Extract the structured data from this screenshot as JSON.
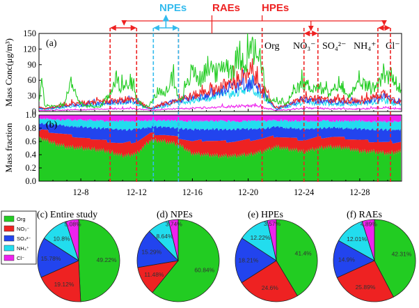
{
  "chart_data": [
    {
      "type": "line",
      "panel_label": "(a)",
      "ylabel": "Mass Conc(μg/m³)",
      "ylim": [
        0,
        150
      ],
      "yticks": [
        0,
        30,
        60,
        90,
        120,
        150
      ],
      "x_range_days": [
        5,
        31
      ],
      "x_ticks": [
        {
          "day": 8,
          "label": "12-8"
        },
        {
          "day": 12,
          "label": "12-12"
        },
        {
          "day": 16,
          "label": "12-16"
        },
        {
          "day": 20,
          "label": "12-20"
        },
        {
          "day": 24,
          "label": "12-24"
        },
        {
          "day": 28,
          "label": "12-28"
        }
      ],
      "series": [
        {
          "name": "Org",
          "color": "#22cc22",
          "values_approx": [
            [
              5.0,
              22
            ],
            [
              5.2,
              60
            ],
            [
              5.4,
              12
            ],
            [
              6.2,
              10
            ],
            [
              6.8,
              14
            ],
            [
              7.4,
              62
            ],
            [
              7.8,
              18
            ],
            [
              8.4,
              10
            ],
            [
              9.3,
              8
            ],
            [
              10.0,
              30
            ],
            [
              10.4,
              62
            ],
            [
              11.0,
              45
            ],
            [
              11.6,
              58
            ],
            [
              12.0,
              25
            ],
            [
              12.5,
              8
            ],
            [
              13.0,
              15
            ],
            [
              13.5,
              40
            ],
            [
              14.0,
              30
            ],
            [
              14.6,
              70
            ],
            [
              15.0,
              20
            ],
            [
              15.5,
              40
            ],
            [
              16.0,
              80
            ],
            [
              16.6,
              60
            ],
            [
              17.2,
              90
            ],
            [
              17.8,
              70
            ],
            [
              18.3,
              95
            ],
            [
              18.8,
              80
            ],
            [
              19.4,
              110
            ],
            [
              19.9,
              95
            ],
            [
              20.3,
              120
            ],
            [
              20.7,
              105
            ],
            [
              21.0,
              88
            ],
            [
              21.3,
              22
            ],
            [
              22.0,
              18
            ],
            [
              22.8,
              15
            ],
            [
              23.4,
              40
            ],
            [
              24.0,
              55
            ],
            [
              24.4,
              48
            ],
            [
              24.8,
              45
            ],
            [
              25.3,
              40
            ],
            [
              26.0,
              35
            ],
            [
              26.5,
              55
            ],
            [
              27.0,
              32
            ],
            [
              27.6,
              40
            ],
            [
              28.2,
              55
            ],
            [
              28.8,
              42
            ],
            [
              29.3,
              55
            ],
            [
              29.7,
              75
            ],
            [
              30.2,
              70
            ],
            [
              30.6,
              45
            ]
          ]
        },
        {
          "name": "NO₃⁻",
          "color": "#ee2222",
          "values_approx": [
            [
              5.0,
              8
            ],
            [
              5.4,
              5
            ],
            [
              7.4,
              15
            ],
            [
              10.4,
              20
            ],
            [
              11.6,
              25
            ],
            [
              13.0,
              6
            ],
            [
              14.6,
              20
            ],
            [
              16.0,
              30
            ],
            [
              17.2,
              40
            ],
            [
              18.3,
              50
            ],
            [
              19.4,
              60
            ],
            [
              20.3,
              70
            ],
            [
              21.0,
              45
            ],
            [
              22.0,
              6
            ],
            [
              24.0,
              25
            ],
            [
              26.5,
              22
            ],
            [
              28.2,
              20
            ],
            [
              29.7,
              35
            ],
            [
              30.6,
              20
            ]
          ]
        },
        {
          "name": "SO₄²⁻",
          "color": "#2244ee",
          "values_approx": [
            [
              5.0,
              7
            ],
            [
              5.4,
              5
            ],
            [
              7.4,
              12
            ],
            [
              10.4,
              18
            ],
            [
              11.6,
              22
            ],
            [
              13.0,
              5
            ],
            [
              14.6,
              18
            ],
            [
              16.0,
              25
            ],
            [
              17.2,
              32
            ],
            [
              18.3,
              40
            ],
            [
              19.4,
              48
            ],
            [
              20.3,
              55
            ],
            [
              21.0,
              40
            ],
            [
              22.0,
              5
            ],
            [
              24.0,
              22
            ],
            [
              26.5,
              18
            ],
            [
              28.2,
              18
            ],
            [
              29.7,
              30
            ],
            [
              30.6,
              18
            ]
          ]
        },
        {
          "name": "NH₄⁺",
          "color": "#22ddee",
          "values_approx": [
            [
              5.0,
              6
            ],
            [
              5.4,
              4
            ],
            [
              7.4,
              9
            ],
            [
              10.4,
              14
            ],
            [
              11.6,
              17
            ],
            [
              13.0,
              4
            ],
            [
              14.6,
              14
            ],
            [
              16.0,
              20
            ],
            [
              17.2,
              26
            ],
            [
              18.3,
              32
            ],
            [
              19.4,
              38
            ],
            [
              20.3,
              44
            ],
            [
              21.0,
              30
            ],
            [
              22.0,
              4
            ],
            [
              24.0,
              17
            ],
            [
              26.5,
              14
            ],
            [
              28.2,
              14
            ],
            [
              29.7,
              22
            ],
            [
              30.6,
              14
            ]
          ]
        },
        {
          "name": "Cl⁻",
          "color": "#ee22ee",
          "values_approx": [
            [
              5.0,
              2
            ],
            [
              5.4,
              2
            ],
            [
              7.4,
              3
            ],
            [
              10.4,
              5
            ],
            [
              11.6,
              6
            ],
            [
              13.0,
              2
            ],
            [
              14.6,
              5
            ],
            [
              16.0,
              6
            ],
            [
              17.2,
              8
            ],
            [
              18.3,
              9
            ],
            [
              19.4,
              10
            ],
            [
              20.3,
              12
            ],
            [
              21.0,
              8
            ],
            [
              22.0,
              2
            ],
            [
              24.0,
              6
            ],
            [
              26.5,
              5
            ],
            [
              28.2,
              5
            ],
            [
              29.7,
              8
            ],
            [
              30.6,
              5
            ]
          ]
        }
      ]
    },
    {
      "type": "area",
      "panel_label": "(b)",
      "ylabel": "Mass fraction",
      "ylim": [
        0,
        1.0
      ],
      "yticks": [
        0.0,
        0.2,
        0.4,
        0.6,
        0.8,
        1.0
      ],
      "stack_order": [
        "Org",
        "NO₃⁻",
        "SO₄²⁻",
        "NH₄⁺",
        "Cl⁻"
      ],
      "cumulative_boundaries_approx": [
        {
          "day": 5.0,
          "org": 0.65,
          "no3": 0.78,
          "so4": 0.88,
          "nh4": 0.95
        },
        {
          "day": 6.0,
          "org": 0.58,
          "no3": 0.74,
          "so4": 0.85,
          "nh4": 0.93
        },
        {
          "day": 7.0,
          "org": 0.52,
          "no3": 0.7,
          "so4": 0.84,
          "nh4": 0.93
        },
        {
          "day": 8.0,
          "org": 0.5,
          "no3": 0.66,
          "so4": 0.82,
          "nh4": 0.92
        },
        {
          "day": 9.0,
          "org": 0.48,
          "no3": 0.63,
          "so4": 0.8,
          "nh4": 0.92
        },
        {
          "day": 10.0,
          "org": 0.45,
          "no3": 0.6,
          "so4": 0.8,
          "nh4": 0.91
        },
        {
          "day": 11.0,
          "org": 0.38,
          "no3": 0.57,
          "so4": 0.78,
          "nh4": 0.91
        },
        {
          "day": 12.0,
          "org": 0.42,
          "no3": 0.6,
          "so4": 0.78,
          "nh4": 0.91
        },
        {
          "day": 13.0,
          "org": 0.62,
          "no3": 0.72,
          "so4": 0.82,
          "nh4": 0.92
        },
        {
          "day": 14.0,
          "org": 0.6,
          "no3": 0.7,
          "so4": 0.82,
          "nh4": 0.92
        },
        {
          "day": 15.0,
          "org": 0.55,
          "no3": 0.66,
          "so4": 0.8,
          "nh4": 0.91
        },
        {
          "day": 16.0,
          "org": 0.42,
          "no3": 0.6,
          "so4": 0.78,
          "nh4": 0.91
        },
        {
          "day": 17.0,
          "org": 0.4,
          "no3": 0.62,
          "so4": 0.79,
          "nh4": 0.91
        },
        {
          "day": 18.0,
          "org": 0.38,
          "no3": 0.6,
          "so4": 0.78,
          "nh4": 0.91
        },
        {
          "day": 19.0,
          "org": 0.38,
          "no3": 0.6,
          "so4": 0.78,
          "nh4": 0.9
        },
        {
          "day": 20.0,
          "org": 0.4,
          "no3": 0.62,
          "so4": 0.79,
          "nh4": 0.91
        },
        {
          "day": 21.0,
          "org": 0.45,
          "no3": 0.64,
          "so4": 0.8,
          "nh4": 0.91
        },
        {
          "day": 22.0,
          "org": 0.52,
          "no3": 0.68,
          "so4": 0.82,
          "nh4": 0.92
        },
        {
          "day": 23.0,
          "org": 0.48,
          "no3": 0.65,
          "so4": 0.8,
          "nh4": 0.91
        },
        {
          "day": 24.0,
          "org": 0.45,
          "no3": 0.62,
          "so4": 0.79,
          "nh4": 0.91
        },
        {
          "day": 25.0,
          "org": 0.5,
          "no3": 0.66,
          "so4": 0.8,
          "nh4": 0.91
        },
        {
          "day": 26.0,
          "org": 0.52,
          "no3": 0.67,
          "so4": 0.81,
          "nh4": 0.91
        },
        {
          "day": 27.0,
          "org": 0.5,
          "no3": 0.65,
          "so4": 0.8,
          "nh4": 0.91
        },
        {
          "day": 28.0,
          "org": 0.45,
          "no3": 0.62,
          "so4": 0.79,
          "nh4": 0.91
        },
        {
          "day": 29.0,
          "org": 0.45,
          "no3": 0.6,
          "so4": 0.78,
          "nh4": 0.9
        },
        {
          "day": 30.0,
          "org": 0.42,
          "no3": 0.58,
          "so4": 0.78,
          "nh4": 0.9
        },
        {
          "day": 31.0,
          "org": 0.45,
          "no3": 0.6,
          "so4": 0.78,
          "nh4": 0.9
        }
      ]
    },
    {
      "type": "pie",
      "title": "(c) Entire study",
      "slices": [
        {
          "name": "Org",
          "value": 49.22,
          "label": "49.22%"
        },
        {
          "name": "NO₃⁻",
          "value": 19.12,
          "label": "19.12%"
        },
        {
          "name": "SO₄²⁻",
          "value": 15.78,
          "label": "15.78%"
        },
        {
          "name": "NH₄⁺",
          "value": 10.8,
          "label": "10.8%"
        },
        {
          "name": "Cl⁻",
          "value": 5.08,
          "label": "5.08%"
        }
      ]
    },
    {
      "type": "pie",
      "title": "(d) NPEs",
      "slices": [
        {
          "name": "Org",
          "value": 60.84,
          "label": "60.84%"
        },
        {
          "name": "NO₃⁻",
          "value": 11.48,
          "label": "11.48%"
        },
        {
          "name": "SO₄²⁻",
          "value": 15.29,
          "label": "15.29%"
        },
        {
          "name": "NH₄⁺",
          "value": 8.64,
          "label": "8.64%"
        },
        {
          "name": "Cl⁻",
          "value": 3.74,
          "label": "3.74%"
        }
      ]
    },
    {
      "type": "pie",
      "title": "(e) HPEs",
      "slices": [
        {
          "name": "Org",
          "value": 41.4,
          "label": "41.4%"
        },
        {
          "name": "NO₃⁻",
          "value": 24.6,
          "label": "24.6%"
        },
        {
          "name": "SO₄²⁻",
          "value": 18.21,
          "label": "18.21%"
        },
        {
          "name": "NH₄⁺",
          "value": 12.22,
          "label": "12.22%"
        },
        {
          "name": "Cl⁻",
          "value": 3.57,
          "label": "3.57%"
        }
      ]
    },
    {
      "type": "pie",
      "title": "(f) RAEs",
      "slices": [
        {
          "name": "Org",
          "value": 42.31,
          "label": "42.31%"
        },
        {
          "name": "NO₃⁻",
          "value": 25.89,
          "label": "25.89%"
        },
        {
          "name": "SO₄²⁻",
          "value": 14.9,
          "label": "14.9%"
        },
        {
          "name": "NH₄⁺",
          "value": 12.01,
          "label": "12.01%"
        },
        {
          "name": "Cl⁻",
          "value": 4.89,
          "label": "4.89%"
        }
      ]
    }
  ],
  "colors": {
    "org": "#22cc22",
    "no3": "#ee2222",
    "so4": "#2244ee",
    "nh4": "#22ddee",
    "cl": "#ee22ee",
    "red_marker": "#ee2222",
    "blue_marker": "#33bbee"
  },
  "annotations": {
    "npes": "NPEs",
    "raes": "RAEs",
    "hpes": "HPEs",
    "series_labels_a": [
      "Org",
      "NO₃⁻",
      "SO₄²⁻",
      "NH₄⁺",
      "Cl⁻"
    ],
    "npe_range_days": [
      13.2,
      15.0
    ],
    "red_ranges_days": [
      [
        10.1,
        12.0
      ],
      [
        15.0,
        21.0
      ],
      [
        24.0,
        25.0
      ],
      [
        29.3,
        30.2
      ]
    ]
  },
  "legend": [
    "Org",
    "NO₃⁻",
    "SO₄²⁻",
    "NH₄⁺",
    "Cl⁻"
  ]
}
